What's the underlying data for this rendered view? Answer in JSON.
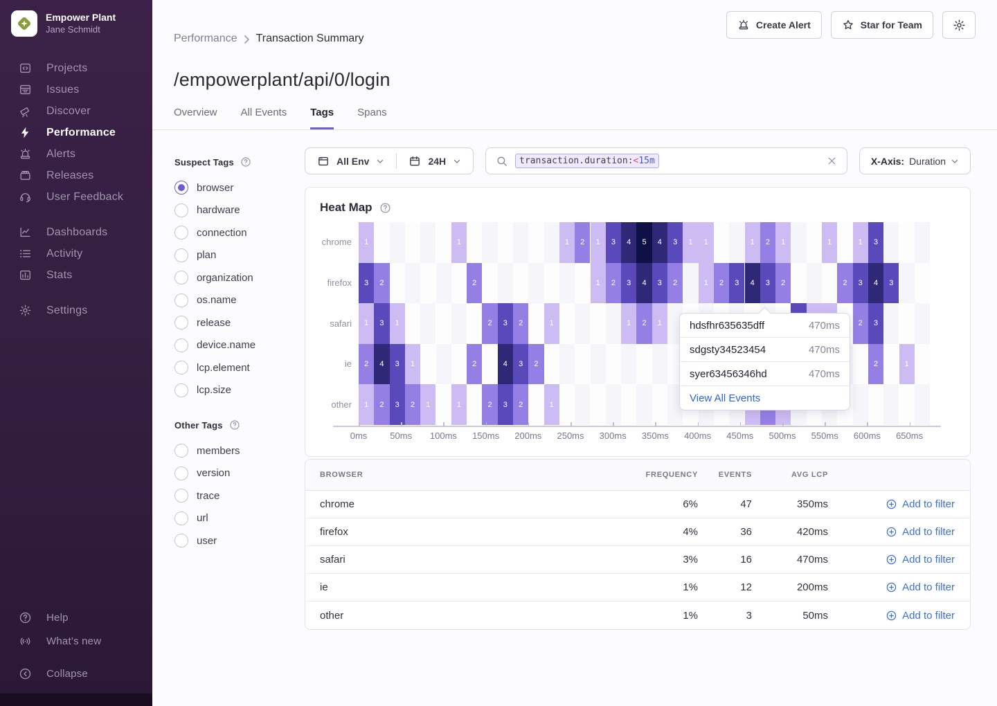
{
  "sidebar": {
    "org": {
      "name": "Empower Plant",
      "user": "Jane Schmidt"
    },
    "nav_main": [
      {
        "label": "Projects",
        "icon": "projects-icon",
        "active": false
      },
      {
        "label": "Issues",
        "icon": "issues-icon",
        "active": false
      },
      {
        "label": "Discover",
        "icon": "discover-icon",
        "active": false
      },
      {
        "label": "Performance",
        "icon": "performance-icon",
        "active": true
      },
      {
        "label": "Alerts",
        "icon": "alerts-icon",
        "active": false
      },
      {
        "label": "Releases",
        "icon": "releases-icon",
        "active": false
      },
      {
        "label": "User Feedback",
        "icon": "user-feedback-icon",
        "active": false
      }
    ],
    "nav_secondary": [
      {
        "label": "Dashboards",
        "icon": "dashboards-icon",
        "active": false
      },
      {
        "label": "Activity",
        "icon": "activity-icon",
        "active": false
      },
      {
        "label": "Stats",
        "icon": "stats-icon",
        "active": false
      }
    ],
    "nav_settings": [
      {
        "label": "Settings",
        "icon": "settings-icon",
        "active": false
      }
    ],
    "nav_footer": [
      {
        "label": "Help",
        "icon": "help-icon"
      },
      {
        "label": "What’s new",
        "icon": "whats-new-icon"
      }
    ],
    "collapse_label": "Collapse"
  },
  "header": {
    "breadcrumb": {
      "parent": "Performance",
      "current": "Transaction Summary"
    },
    "actions": {
      "create_alert": "Create Alert",
      "star_for_team": "Star for Team"
    },
    "title": "/empowerplant/api/0/login",
    "tabs": [
      {
        "label": "Overview",
        "active": false
      },
      {
        "label": "All Events",
        "active": false
      },
      {
        "label": "Tags",
        "active": true
      },
      {
        "label": "Spans",
        "active": false
      }
    ]
  },
  "filters": {
    "env": "All Env",
    "date_range": "24H",
    "search": {
      "key": "transaction.duration:",
      "op": "<",
      "value": "15m"
    },
    "xaxis_label": "X-Axis:",
    "xaxis_value": "Duration"
  },
  "suspect_tags": {
    "title": "Suspect Tags",
    "items": [
      {
        "label": "browser",
        "selected": true
      },
      {
        "label": "hardware",
        "selected": false
      },
      {
        "label": "connection",
        "selected": false
      },
      {
        "label": "plan",
        "selected": false
      },
      {
        "label": "organization",
        "selected": false
      },
      {
        "label": "os.name",
        "selected": false
      },
      {
        "label": "release",
        "selected": false
      },
      {
        "label": "device.name",
        "selected": false
      },
      {
        "label": "lcp.element",
        "selected": false
      },
      {
        "label": "lcp.size",
        "selected": false
      }
    ]
  },
  "other_tags": {
    "title": "Other Tags",
    "items": [
      {
        "label": "members",
        "selected": false
      },
      {
        "label": "version",
        "selected": false
      },
      {
        "label": "trace",
        "selected": false
      },
      {
        "label": "url",
        "selected": false
      },
      {
        "label": "user",
        "selected": false
      }
    ]
  },
  "chart_data": {
    "type": "heatmap",
    "title": "Heat Map",
    "x_ticks": [
      "0ms",
      "50ms",
      "100ms",
      "150ms",
      "200ms",
      "250ms",
      "300ms",
      "350ms",
      "400ms",
      "450ms",
      "500ms",
      "550ms",
      "600ms",
      "650ms"
    ],
    "rows": [
      "chrome",
      "firefox",
      "safari",
      "ie",
      "other"
    ],
    "n_cols": 37,
    "value_colors": {
      "1": "#cdbcf3",
      "2": "#9480e4",
      "3": "#5a49bb",
      "4": "#2e2877",
      "5": "#0f1046"
    },
    "empty_colors": [
      "#f6f5f9",
      "#fdfdfe"
    ],
    "series": [
      {
        "name": "chrome",
        "cells": [
          [
            0,
            1
          ],
          [
            6,
            1
          ],
          [
            13,
            1
          ],
          [
            14,
            2
          ],
          [
            15,
            1
          ],
          [
            16,
            3
          ],
          [
            17,
            4
          ],
          [
            18,
            5
          ],
          [
            19,
            4
          ],
          [
            20,
            3
          ],
          [
            21,
            1
          ],
          [
            22,
            1
          ],
          [
            25,
            1
          ],
          [
            26,
            2
          ],
          [
            27,
            1
          ],
          [
            30,
            1
          ],
          [
            32,
            1
          ],
          [
            33,
            3
          ]
        ]
      },
      {
        "name": "firefox",
        "cells": [
          [
            0,
            3
          ],
          [
            1,
            2
          ],
          [
            7,
            2
          ],
          [
            15,
            1
          ],
          [
            16,
            2
          ],
          [
            17,
            3
          ],
          [
            18,
            4
          ],
          [
            19,
            3
          ],
          [
            20,
            2
          ],
          [
            22,
            1
          ],
          [
            23,
            2
          ],
          [
            24,
            3
          ],
          [
            25,
            4
          ],
          [
            26,
            3
          ],
          [
            27,
            2
          ],
          [
            31,
            2
          ],
          [
            32,
            3
          ],
          [
            33,
            4
          ],
          [
            34,
            3
          ]
        ]
      },
      {
        "name": "safari",
        "cells": [
          [
            0,
            1
          ],
          [
            1,
            3
          ],
          [
            2,
            1
          ],
          [
            8,
            2
          ],
          [
            9,
            3
          ],
          [
            10,
            2
          ],
          [
            12,
            1
          ],
          [
            17,
            1
          ],
          [
            18,
            2
          ],
          [
            19,
            1
          ],
          [
            28,
            3
          ],
          [
            29,
            1
          ],
          [
            30,
            1
          ],
          [
            32,
            2
          ],
          [
            33,
            3
          ]
        ]
      },
      {
        "name": "ie",
        "cells": [
          [
            0,
            2
          ],
          [
            1,
            4
          ],
          [
            2,
            3
          ],
          [
            3,
            1
          ],
          [
            7,
            2
          ],
          [
            9,
            4
          ],
          [
            10,
            3
          ],
          [
            11,
            2
          ],
          [
            33,
            2
          ],
          [
            35,
            1
          ]
        ]
      },
      {
        "name": "other",
        "cells": [
          [
            0,
            1
          ],
          [
            1,
            2
          ],
          [
            2,
            3
          ],
          [
            3,
            2
          ],
          [
            4,
            1
          ],
          [
            6,
            1
          ],
          [
            8,
            2
          ],
          [
            9,
            3
          ],
          [
            10,
            2
          ],
          [
            12,
            1
          ],
          [
            25,
            1
          ],
          [
            26,
            2
          ],
          [
            27,
            1
          ]
        ]
      }
    ]
  },
  "tooltip": {
    "events": [
      {
        "id": "hdsfhr635635dff",
        "value": "470ms"
      },
      {
        "id": "sdgsty34523454",
        "value": "470ms"
      },
      {
        "id": "syer63456346hd",
        "value": "470ms"
      }
    ],
    "link": "View All Events"
  },
  "table": {
    "headers": [
      "BROWSER",
      "FREQUENCY",
      "EVENTS",
      "AVG LCP"
    ],
    "action_label": "Add to filter",
    "rows": [
      {
        "browser": "chrome",
        "frequency": "6%",
        "events": "47",
        "avg_lcp": "350ms"
      },
      {
        "browser": "firefox",
        "frequency": "4%",
        "events": "36",
        "avg_lcp": "420ms"
      },
      {
        "browser": "safari",
        "frequency": "3%",
        "events": "16",
        "avg_lcp": "470ms"
      },
      {
        "browser": "ie",
        "frequency": "1%",
        "events": "12",
        "avg_lcp": "200ms"
      },
      {
        "browser": "other",
        "frequency": "1%",
        "events": "3",
        "avg_lcp": "50ms"
      }
    ]
  }
}
